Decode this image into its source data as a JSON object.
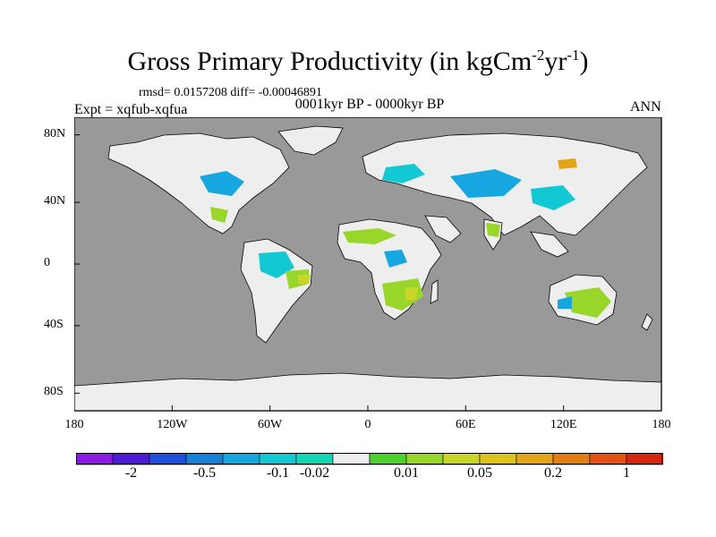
{
  "title": {
    "main": "Gross Primary Productivity (in kgCm",
    "exp1": "-2",
    "mid": "yr",
    "exp2": "-1",
    "end": ")"
  },
  "stats": "rmsd= 0.0157208 diff= -0.00046891",
  "period": "0001kyr BP - 0000kyr BP",
  "experiment": "Expt = xqfub-xqfua",
  "season": "ANN",
  "map": {
    "ocean_color": "#999999",
    "land_color": "#eeeeee",
    "lat_ticks": [
      "80N",
      "40N",
      "0",
      "40S",
      "80S"
    ],
    "lon_ticks": [
      "180",
      "120W",
      "60W",
      "0",
      "60E",
      "120E",
      "180"
    ]
  },
  "colorbar": {
    "colors": [
      "#8c1ce5",
      "#4c1cd9",
      "#1f4fdc",
      "#1781d9",
      "#16a7e0",
      "#12c8d2",
      "#16d6b4",
      "#eeeeee",
      "#4cd22d",
      "#99d62a",
      "#c9d628",
      "#dcc41c",
      "#e3a417",
      "#e47e12",
      "#e45110",
      "#d8260e"
    ],
    "labels": [
      "-2",
      "-0.5",
      "-0.1",
      "-0.02",
      "0.01",
      "0.05",
      "0.2",
      "1"
    ]
  }
}
